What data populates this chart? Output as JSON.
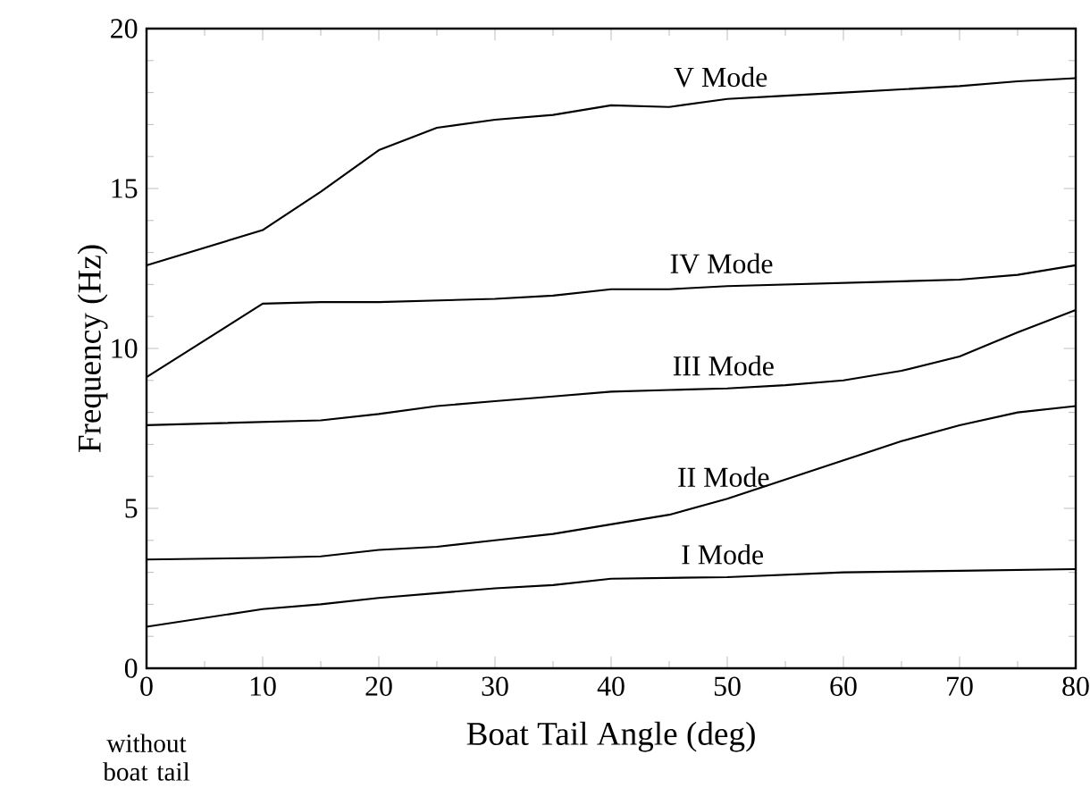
{
  "chart_data": {
    "type": "line",
    "xlabel": "Boat Tail Angle (deg)",
    "ylabel": "Frequency  (Hz)",
    "xlim": [
      0,
      80
    ],
    "ylim": [
      0,
      20
    ],
    "xticks": [
      0,
      10,
      20,
      30,
      40,
      50,
      60,
      70,
      80
    ],
    "yticks": [
      0,
      5,
      10,
      15,
      20
    ],
    "grid": false,
    "marker": "none",
    "line_style": "solid",
    "series": [
      {
        "name": "I Mode",
        "color": "#000000",
        "x": [
          0,
          10,
          15,
          20,
          25,
          30,
          35,
          40,
          50,
          60,
          70,
          80
        ],
        "values": [
          1.3,
          1.85,
          2.0,
          2.2,
          2.35,
          2.5,
          2.6,
          2.8,
          2.85,
          3.0,
          3.05,
          3.1
        ]
      },
      {
        "name": "II Mode",
        "color": "#000000",
        "x": [
          0,
          10,
          15,
          20,
          25,
          30,
          35,
          40,
          45,
          50,
          55,
          60,
          65,
          70,
          75,
          80
        ],
        "values": [
          3.4,
          3.45,
          3.5,
          3.7,
          3.8,
          4.0,
          4.2,
          4.5,
          4.8,
          5.3,
          5.9,
          6.5,
          7.1,
          7.6,
          8.0,
          8.2
        ]
      },
      {
        "name": "III Mode",
        "color": "#000000",
        "x": [
          0,
          10,
          15,
          20,
          25,
          30,
          35,
          40,
          45,
          50,
          55,
          60,
          65,
          70,
          75,
          80
        ],
        "values": [
          7.6,
          7.7,
          7.75,
          7.95,
          8.2,
          8.35,
          8.5,
          8.65,
          8.7,
          8.75,
          8.85,
          9.0,
          9.3,
          9.75,
          10.5,
          11.2
        ]
      },
      {
        "name": "IV Mode",
        "color": "#000000",
        "x": [
          0,
          10,
          15,
          20,
          25,
          30,
          35,
          40,
          45,
          50,
          60,
          70,
          75,
          80
        ],
        "values": [
          9.1,
          11.4,
          11.45,
          11.45,
          11.5,
          11.55,
          11.65,
          11.85,
          11.85,
          11.95,
          12.05,
          12.15,
          12.3,
          12.6
        ]
      },
      {
        "name": "V Mode",
        "color": "#000000",
        "x": [
          0,
          10,
          15,
          20,
          25,
          30,
          35,
          40,
          45,
          50,
          55,
          60,
          65,
          70,
          75,
          80
        ],
        "values": [
          12.6,
          13.7,
          14.9,
          16.2,
          16.9,
          17.15,
          17.3,
          17.6,
          17.55,
          17.8,
          17.9,
          18.0,
          18.1,
          18.2,
          18.35,
          18.45
        ]
      }
    ],
    "annotations": [
      "without boat tail"
    ]
  }
}
